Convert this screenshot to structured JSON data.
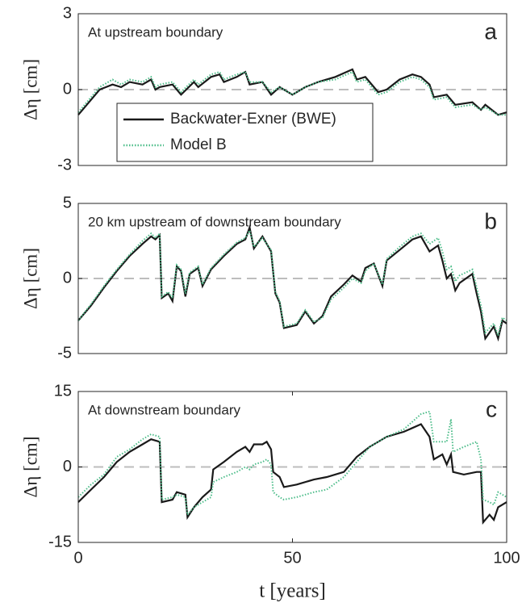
{
  "chart_data": [
    {
      "type": "line",
      "annotation": "At upstream boundary",
      "panel_label": "a",
      "ylabel": "Δη [cm]",
      "xlim": [
        0,
        100
      ],
      "ylim": [
        -3,
        3
      ],
      "yticks": [
        -3,
        0,
        3
      ],
      "reference_line": 0,
      "legend": "lower left",
      "x": [
        0,
        2,
        5,
        8,
        10,
        12,
        15,
        17,
        18,
        19,
        22,
        24,
        27,
        28,
        31,
        33,
        34,
        37,
        39,
        40,
        43,
        45,
        47,
        50,
        53,
        56,
        60,
        64,
        65,
        67,
        70,
        72,
        75,
        78,
        80,
        82,
        83,
        86,
        88,
        92,
        94,
        95,
        98,
        100
      ],
      "series": [
        {
          "name": "Backwater-Exner (BWE)",
          "color": "#1a1a1a",
          "line_style": "solid",
          "values": [
            -1,
            -0.6,
            0,
            0.2,
            0.1,
            0.3,
            0.2,
            0.4,
            0,
            0.1,
            0.2,
            -0.2,
            0.3,
            0.1,
            0.5,
            0.6,
            0.3,
            0.5,
            0.7,
            0.2,
            0.3,
            -0.2,
            0.1,
            -0.2,
            0.1,
            0.3,
            0.5,
            0.8,
            0.4,
            0.5,
            -0.1,
            0,
            0.4,
            0.6,
            0.5,
            0.2,
            -0.3,
            -0.2,
            -0.6,
            -0.5,
            -0.8,
            -0.6,
            -1,
            -0.9
          ]
        },
        {
          "name": "Model B",
          "color": "#4dbd8a",
          "line_style": "dotted",
          "values": [
            -0.9,
            -0.5,
            0.1,
            0.4,
            0.2,
            0.4,
            0.3,
            0.5,
            0.1,
            0.2,
            0.3,
            -0.1,
            0.4,
            0.2,
            0.6,
            0.7,
            0.4,
            0.6,
            0.7,
            0.3,
            0.3,
            -0.1,
            0.1,
            -0.2,
            0.1,
            0.3,
            0.4,
            0.7,
            0.3,
            0.4,
            -0.2,
            -0.1,
            0.3,
            0.5,
            0.4,
            0.1,
            -0.4,
            -0.3,
            -0.7,
            -0.6,
            -0.8,
            -0.7,
            -1,
            -1
          ]
        }
      ]
    },
    {
      "type": "line",
      "annotation": "20 km upstream of downstream boundary",
      "panel_label": "b",
      "ylabel": "Δη [cm]",
      "xlim": [
        0,
        100
      ],
      "ylim": [
        -5,
        5
      ],
      "yticks": [
        -5,
        0,
        5
      ],
      "reference_line": 0,
      "x": [
        0,
        3,
        6,
        9,
        12,
        15,
        17,
        18,
        19,
        19.5,
        21,
        22,
        23,
        24,
        25,
        26,
        28,
        29,
        31,
        34,
        37,
        39,
        40,
        41,
        43,
        45,
        46,
        47,
        48,
        51,
        53,
        55,
        57,
        59,
        62,
        64,
        66,
        67,
        69,
        71,
        72,
        75,
        78,
        80,
        82,
        84,
        85,
        86,
        87,
        88,
        89,
        92,
        93,
        94,
        95,
        97,
        98,
        99,
        100
      ],
      "series": [
        {
          "name": "Backwater-Exner (BWE)",
          "color": "#1a1a1a",
          "line_style": "solid",
          "values": [
            -2.8,
            -1.8,
            -0.6,
            0.5,
            1.5,
            2.3,
            2.8,
            2.6,
            2.9,
            -1.3,
            -1,
            -1.5,
            0.8,
            0.5,
            -1.2,
            0.3,
            0.7,
            -0.5,
            0.6,
            1.5,
            2.3,
            2.6,
            3.4,
            2,
            2.8,
            1.8,
            -1,
            -1.6,
            -3.3,
            -3.1,
            -2.2,
            -3,
            -2.5,
            -1.2,
            -0.4,
            0.2,
            -0.2,
            0.7,
            1,
            -0.5,
            1.2,
            1.9,
            2.6,
            2.8,
            1.8,
            2.2,
            1.2,
            0,
            0.3,
            -0.8,
            -0.3,
            0.3,
            -1,
            -2.2,
            -4,
            -3.2,
            -4,
            -2.8,
            -3
          ]
        },
        {
          "name": "Model B",
          "color": "#4dbd8a",
          "line_style": "dotted",
          "values": [
            -2.8,
            -1.7,
            -0.5,
            0.6,
            1.6,
            2.5,
            3,
            2.7,
            3,
            -1.2,
            -0.9,
            -1.3,
            0.9,
            0.6,
            -1,
            0.4,
            0.8,
            -0.4,
            0.7,
            1.6,
            2.4,
            2.7,
            3.2,
            2.1,
            2.7,
            1.9,
            -0.9,
            -1.5,
            -3.2,
            -3,
            -2.1,
            -2.9,
            -2.6,
            -1.4,
            -0.6,
            0,
            -0.3,
            0.5,
            1,
            -0.4,
            1.3,
            2.1,
            2.8,
            3,
            2.3,
            2.7,
            1.8,
            0.6,
            0.8,
            -0.2,
            0.2,
            0.6,
            -0.6,
            -1.8,
            -3.6,
            -3,
            -3.8,
            -2.6,
            -2.8
          ]
        }
      ]
    },
    {
      "type": "line",
      "annotation": "At downstream boundary",
      "panel_label": "c",
      "ylabel": "Δη [cm]",
      "xlabel": "t [years]",
      "xlim": [
        0,
        100
      ],
      "xticks": [
        0,
        50,
        100
      ],
      "ylim": [
        -15,
        15
      ],
      "yticks": [
        -15,
        0,
        15
      ],
      "reference_line": 0,
      "x": [
        0,
        3,
        6,
        9,
        12,
        15,
        17,
        19,
        19.5,
        22,
        23,
        25,
        25.5,
        27,
        29,
        31,
        31.5,
        34,
        37,
        39,
        40,
        41,
        43,
        44,
        45,
        45.5,
        47,
        48,
        51,
        55,
        58,
        62,
        65,
        68,
        72,
        76,
        80,
        82,
        83,
        85,
        86,
        87,
        87.5,
        90,
        93,
        94,
        94.5,
        96,
        97,
        98,
        100
      ],
      "series": [
        {
          "name": "Backwater-Exner (BWE)",
          "color": "#1a1a1a",
          "line_style": "solid",
          "values": [
            -7,
            -4.5,
            -2,
            1,
            3,
            4.5,
            5.5,
            5,
            -7,
            -6.5,
            -5,
            -5.5,
            -10,
            -8,
            -6,
            -4.5,
            -0.5,
            1,
            3,
            4,
            3,
            4.5,
            4.5,
            5,
            3.5,
            -1,
            -2,
            -4,
            -3.5,
            -2.5,
            -2,
            -1,
            2,
            4,
            6,
            7,
            8.5,
            6,
            1.5,
            2.5,
            0.5,
            2.5,
            -1,
            -1.5,
            -1,
            -1,
            -11,
            -9.5,
            -10.5,
            -8,
            -7
          ]
        },
        {
          "name": "Model B",
          "color": "#4dbd8a",
          "line_style": "dotted",
          "values": [
            -6,
            -3.5,
            -1.5,
            2,
            3.5,
            5.5,
            6.5,
            6,
            -6.5,
            -6,
            -5.5,
            -6,
            -9.5,
            -8,
            -7,
            -6,
            -3,
            -2,
            -1,
            0,
            -0.5,
            0.5,
            1,
            1.5,
            0.5,
            -5,
            -6,
            -6.5,
            -6,
            -5,
            -4.5,
            -2,
            1,
            4,
            6,
            7.5,
            10.5,
            11,
            5,
            5,
            5,
            9.5,
            3,
            4,
            5,
            1.5,
            -6.5,
            -7,
            -7.5,
            -5,
            -6
          ]
        }
      ]
    }
  ]
}
